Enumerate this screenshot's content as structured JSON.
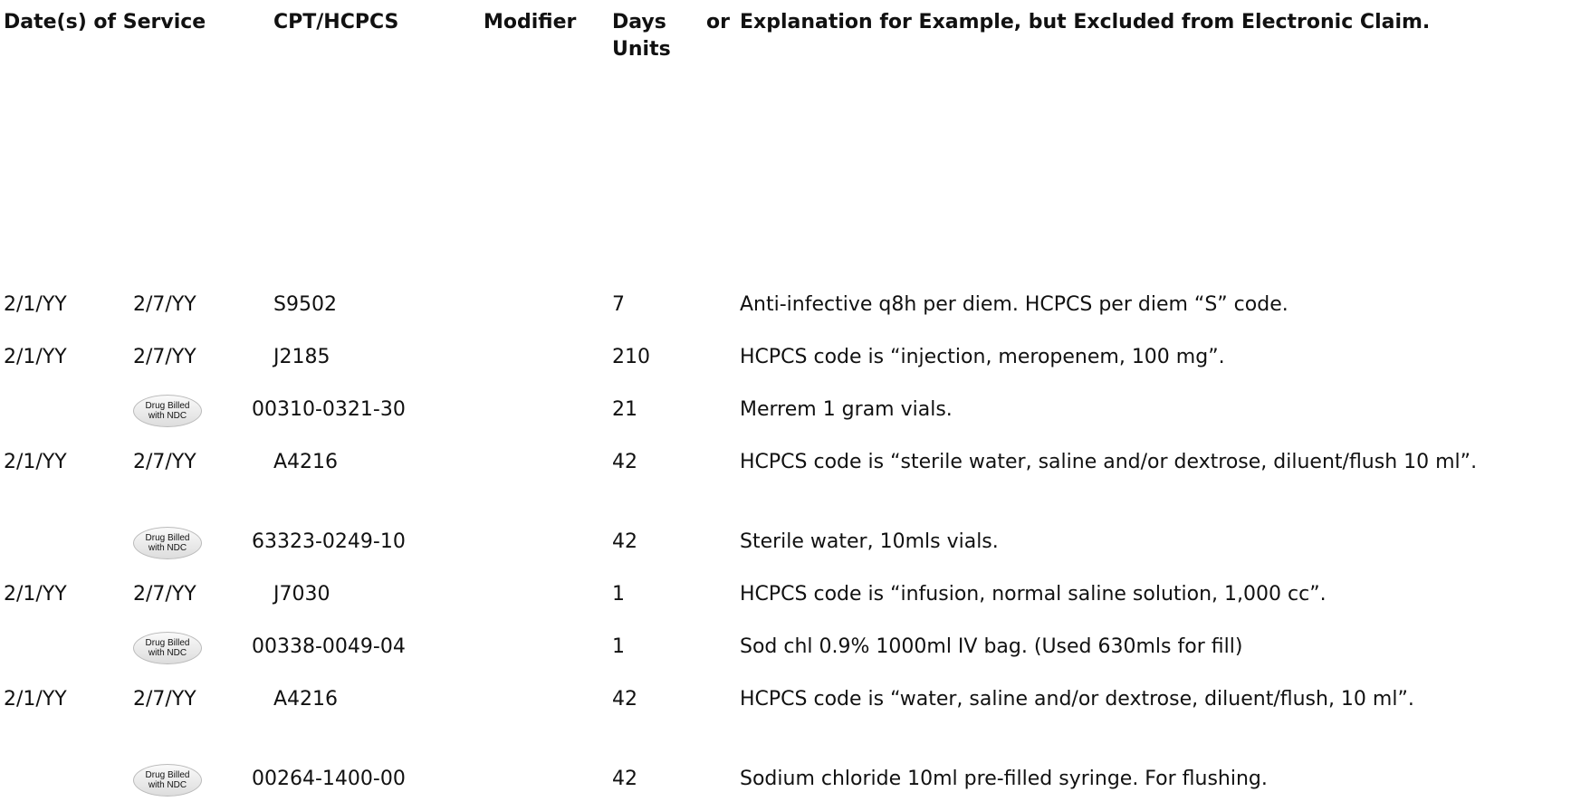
{
  "header": {
    "date": "Date(s) of Service",
    "code": "CPT/HCPCS",
    "modifier": "Modifier",
    "units": "Days or Units",
    "explanation": "Explanation for Example, but Excluded from Electronic Claim."
  },
  "badge": {
    "line1": "Drug Billed",
    "line2": "with NDC"
  },
  "rows": [
    {
      "from": "2/1/YY",
      "to": "2/7/YY",
      "code": "S9502",
      "units": "7",
      "explanation": "Anti-infective q8h per diem. HCPCS per diem “S” code."
    },
    {
      "from": "2/1/YY",
      "to": "2/7/YY",
      "code": "J2185",
      "units": "210",
      "explanation": "HCPCS code is “injection, meropenem, 100 mg”."
    },
    {
      "ndc": true,
      "code": "00310-0321-30",
      "units": "21",
      "explanation": "Merrem 1 gram vials."
    },
    {
      "from": "2/1/YY",
      "to": "2/7/YY",
      "code": "A4216",
      "units": "42",
      "explanation": "HCPCS code is “sterile water, saline and/or dextrose, diluent/flush 10 ml”."
    },
    {
      "ndc": true,
      "code": "63323-0249-10",
      "units": "42",
      "explanation": "Sterile water, 10mls vials."
    },
    {
      "from": "2/1/YY",
      "to": "2/7/YY",
      "code": "J7030",
      "units": "1",
      "explanation": "HCPCS code is “infusion, normal saline solution, 1,000 cc”."
    },
    {
      "ndc": true,
      "code": "00338-0049-04",
      "units": "1",
      "explanation": "Sod chl 0.9% 1000ml IV bag. (Used 630mls for fill)"
    },
    {
      "from": "2/1/YY",
      "to": "2/7/YY",
      "code": "A4216",
      "units": "42",
      "explanation": "HCPCS code is “water, saline and/or dextrose, diluent/flush, 10 ml”."
    },
    {
      "ndc": true,
      "code": "00264-1400-00",
      "units": "42",
      "explanation": "Sodium chloride 10ml pre-filled syringe. For flushing."
    }
  ]
}
